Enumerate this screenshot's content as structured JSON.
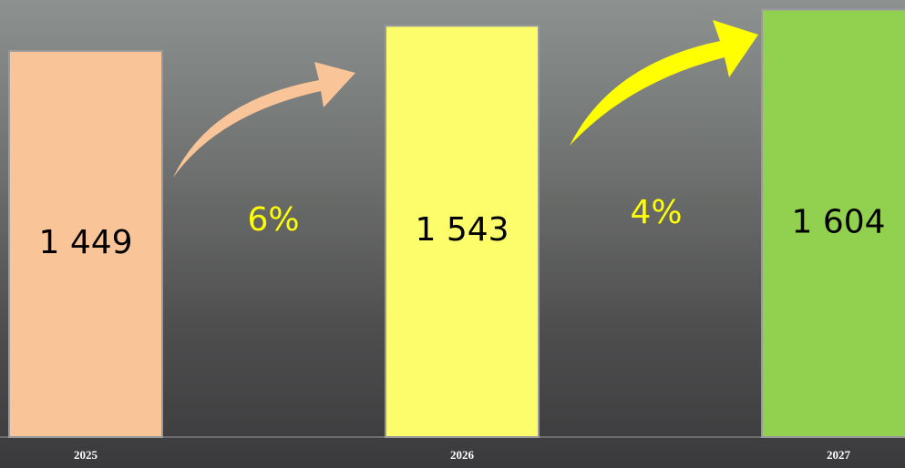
{
  "chart_data": {
    "type": "bar",
    "categories": [
      "2025",
      "2026",
      "2027"
    ],
    "values": [
      1449,
      1543,
      1604
    ],
    "value_labels": [
      "1 449",
      "1 543",
      "1 604"
    ],
    "colors": [
      "#f9c598",
      "#fdfd6c",
      "#92d050"
    ],
    "ylim": [
      0,
      1640
    ],
    "annotations": [
      "6%",
      "4%"
    ]
  }
}
